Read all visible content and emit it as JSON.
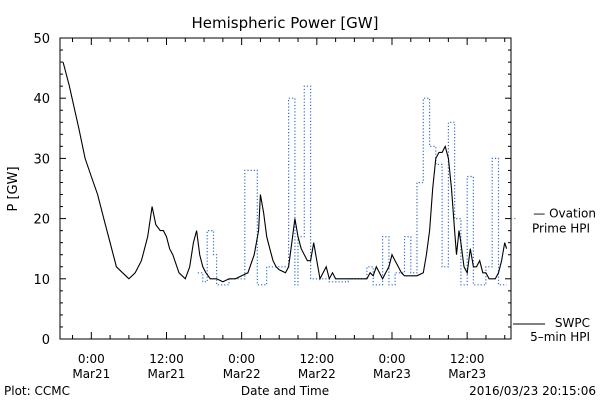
{
  "chart_data": {
    "type": "line",
    "title": "Hemispheric Power [GW]",
    "xlabel": "Date and Time",
    "ylabel": "P [GW]",
    "ylim": [
      0,
      50
    ],
    "yticks": [
      0,
      10,
      20,
      30,
      40,
      50
    ],
    "xlim_hours": [
      -5,
      67
    ],
    "xticks": [
      {
        "hour": 0,
        "time": "0:00",
        "date": "Mar21"
      },
      {
        "hour": 12,
        "time": "12:00",
        "date": "Mar21"
      },
      {
        "hour": 24,
        "time": "0:00",
        "date": "Mar22"
      },
      {
        "hour": 36,
        "time": "12:00",
        "date": "Mar22"
      },
      {
        "hour": 48,
        "time": "0:00",
        "date": "Mar23"
      },
      {
        "hour": 60,
        "time": "12:00",
        "date": "Mar23"
      }
    ],
    "grid": false,
    "legend_position": "right",
    "series": [
      {
        "name": "Ovation Prime HPI",
        "legend_lines": [
          "— Ovation",
          "Prime HPI"
        ],
        "color": "#2d6fd0",
        "style": "dotted",
        "points": [
          [
            17,
            11
          ],
          [
            17.8,
            11
          ],
          [
            17.8,
            9.5
          ],
          [
            18.5,
            9.5
          ],
          [
            18.5,
            18
          ],
          [
            19.5,
            18
          ],
          [
            19.5,
            14
          ],
          [
            20,
            14
          ],
          [
            20,
            9
          ],
          [
            22,
            9
          ],
          [
            22,
            10
          ],
          [
            24.5,
            10
          ],
          [
            24.5,
            28
          ],
          [
            26.5,
            28
          ],
          [
            26.5,
            9
          ],
          [
            28,
            9
          ],
          [
            28,
            12
          ],
          [
            31.5,
            12
          ],
          [
            31.5,
            40
          ],
          [
            32.5,
            40
          ],
          [
            32.5,
            9
          ],
          [
            33,
            9
          ],
          [
            33,
            17
          ],
          [
            34,
            17
          ],
          [
            34,
            42
          ],
          [
            35,
            42
          ],
          [
            35,
            10
          ],
          [
            38,
            10
          ],
          [
            38,
            9.5
          ],
          [
            41,
            9.5
          ],
          [
            41,
            10
          ],
          [
            44,
            10
          ],
          [
            44,
            12
          ],
          [
            45,
            12
          ],
          [
            45,
            9
          ],
          [
            46.5,
            9
          ],
          [
            46.5,
            17
          ],
          [
            47.5,
            17
          ],
          [
            47.5,
            9
          ],
          [
            48.5,
            9
          ],
          [
            48.5,
            11
          ],
          [
            50,
            11
          ],
          [
            50,
            17
          ],
          [
            51,
            17
          ],
          [
            51,
            11
          ],
          [
            52,
            11
          ],
          [
            52,
            26
          ],
          [
            53,
            26
          ],
          [
            53,
            40
          ],
          [
            54,
            40
          ],
          [
            54,
            32
          ],
          [
            55,
            32
          ],
          [
            55,
            29
          ],
          [
            56,
            29
          ],
          [
            56,
            12
          ],
          [
            57,
            12
          ],
          [
            57,
            36
          ],
          [
            58,
            36
          ],
          [
            58,
            20
          ],
          [
            59,
            20
          ],
          [
            59,
            9
          ],
          [
            60,
            9
          ],
          [
            60,
            27
          ],
          [
            61,
            27
          ],
          [
            61,
            9
          ],
          [
            63,
            9
          ],
          [
            63,
            12
          ],
          [
            64,
            12
          ],
          [
            64,
            30
          ],
          [
            65,
            30
          ],
          [
            65,
            9
          ],
          [
            66.3,
            9
          ]
        ]
      },
      {
        "name": "SWPC 5-min HPI",
        "legend_lines": [
          "SWPC",
          "5–min HPI"
        ],
        "color": "#000000",
        "style": "solid",
        "points": [
          [
            -4.5,
            46
          ],
          [
            -3.5,
            42
          ],
          [
            -2,
            35
          ],
          [
            -1,
            30
          ],
          [
            0,
            27
          ],
          [
            1,
            24
          ],
          [
            2,
            20
          ],
          [
            3,
            16
          ],
          [
            4,
            12
          ],
          [
            5,
            11
          ],
          [
            6,
            10
          ],
          [
            7,
            11
          ],
          [
            8,
            13
          ],
          [
            9,
            17
          ],
          [
            9.7,
            22
          ],
          [
            10.3,
            19
          ],
          [
            11,
            18
          ],
          [
            11.5,
            18
          ],
          [
            12,
            17
          ],
          [
            12.5,
            15
          ],
          [
            13,
            14
          ],
          [
            14,
            11
          ],
          [
            15,
            10
          ],
          [
            15.7,
            12
          ],
          [
            16.3,
            16
          ],
          [
            16.8,
            18
          ],
          [
            17.3,
            14
          ],
          [
            17.8,
            12
          ],
          [
            18.3,
            11
          ],
          [
            19,
            10
          ],
          [
            20,
            10
          ],
          [
            21,
            9.5
          ],
          [
            22,
            10
          ],
          [
            23,
            10
          ],
          [
            24,
            10.5
          ],
          [
            25,
            11
          ],
          [
            26,
            14
          ],
          [
            26.7,
            18
          ],
          [
            27,
            24
          ],
          [
            27.5,
            21
          ],
          [
            28,
            17
          ],
          [
            28.5,
            15
          ],
          [
            29,
            13
          ],
          [
            29.5,
            12
          ],
          [
            30,
            11.5
          ],
          [
            31,
            11
          ],
          [
            31.5,
            12
          ],
          [
            32,
            16
          ],
          [
            32.5,
            20
          ],
          [
            33,
            17
          ],
          [
            33.5,
            15
          ],
          [
            34,
            14
          ],
          [
            34.5,
            13
          ],
          [
            35,
            13
          ],
          [
            35.5,
            16
          ],
          [
            36,
            13
          ],
          [
            36.5,
            10
          ],
          [
            37,
            11
          ],
          [
            37.5,
            12
          ],
          [
            38,
            10
          ],
          [
            38.5,
            11
          ],
          [
            39,
            10
          ],
          [
            40,
            10
          ],
          [
            41,
            10
          ],
          [
            42,
            10
          ],
          [
            43,
            10
          ],
          [
            44,
            10
          ],
          [
            44.5,
            11
          ],
          [
            45,
            10.5
          ],
          [
            45.5,
            12
          ],
          [
            46,
            11
          ],
          [
            46.5,
            10
          ],
          [
            47,
            11
          ],
          [
            47.5,
            12
          ],
          [
            48,
            14
          ],
          [
            48.5,
            13
          ],
          [
            49,
            12
          ],
          [
            49.5,
            11
          ],
          [
            50,
            10.5
          ],
          [
            51,
            10.5
          ],
          [
            52,
            10.5
          ],
          [
            53,
            11
          ],
          [
            53.5,
            14
          ],
          [
            54,
            18
          ],
          [
            54.5,
            25
          ],
          [
            55,
            30
          ],
          [
            55.5,
            31
          ],
          [
            56,
            31
          ],
          [
            56.5,
            32
          ],
          [
            57,
            30
          ],
          [
            57.5,
            25
          ],
          [
            58,
            18
          ],
          [
            58.3,
            14
          ],
          [
            58.7,
            18
          ],
          [
            59,
            16
          ],
          [
            59.5,
            12
          ],
          [
            60,
            11
          ],
          [
            60.5,
            15
          ],
          [
            61,
            12
          ],
          [
            61.5,
            12
          ],
          [
            62,
            13
          ],
          [
            62.5,
            11
          ],
          [
            63,
            11
          ],
          [
            63.5,
            10
          ],
          [
            64,
            10
          ],
          [
            64.5,
            10
          ],
          [
            65,
            11
          ],
          [
            65.5,
            13
          ],
          [
            66,
            16
          ],
          [
            66.3,
            15
          ]
        ]
      }
    ]
  },
  "footer": {
    "credit": "Plot: CCMC",
    "timestamp": "2016/03/23 20:15:06"
  }
}
